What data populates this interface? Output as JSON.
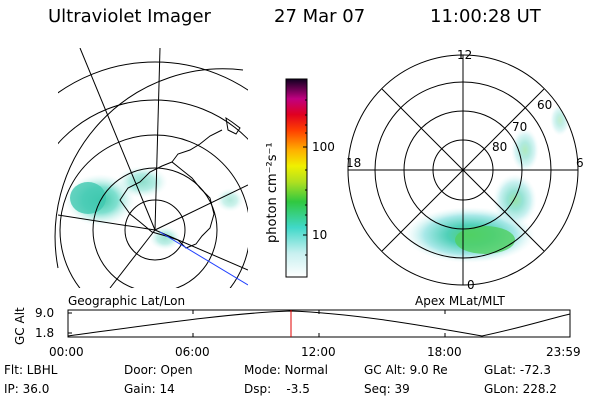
{
  "header": {
    "instrument": "Ultraviolet Imager",
    "date": "27 Mar 07",
    "time": "11:00:28 UT"
  },
  "colorbar": {
    "unit_label": "photon cm⁻²s⁻¹",
    "ticks": [
      "100",
      "10"
    ]
  },
  "left_panel": {
    "caption": "Geographic Lat/Lon"
  },
  "right_panel": {
    "caption": "Apex MLat/MLT",
    "mlt_labels": [
      "12",
      "18",
      "6",
      "0"
    ],
    "mlat_labels": [
      "80",
      "70",
      "60"
    ]
  },
  "gc_alt_plot": {
    "ylabel": "GC Alt",
    "y_ticks": [
      "9.0",
      "1.8"
    ],
    "x_ticks": [
      "00:00",
      "06:00",
      "12:00",
      "18:00",
      "23:59"
    ],
    "cursor_time": "11:00:28"
  },
  "footer": {
    "flt": "Flt: LBHL",
    "ip": "IP: 36.0",
    "door": "Door: Open",
    "gain": "Gain: 14",
    "mode": "Mode: Normal",
    "dsp": "Dsp:    -3.5",
    "gc_alt": "GC Alt: 9.0 Re",
    "seq": "Seq: 39",
    "glat": "GLat: -72.3",
    "glon": "GLon: 228.2"
  },
  "colors": {
    "cursor": "#e00000",
    "nadir_line": "#2040ff",
    "aurora_low": "#a0e8e0",
    "aurora_mid": "#40d0b0",
    "aurora_high": "#60d040"
  }
}
